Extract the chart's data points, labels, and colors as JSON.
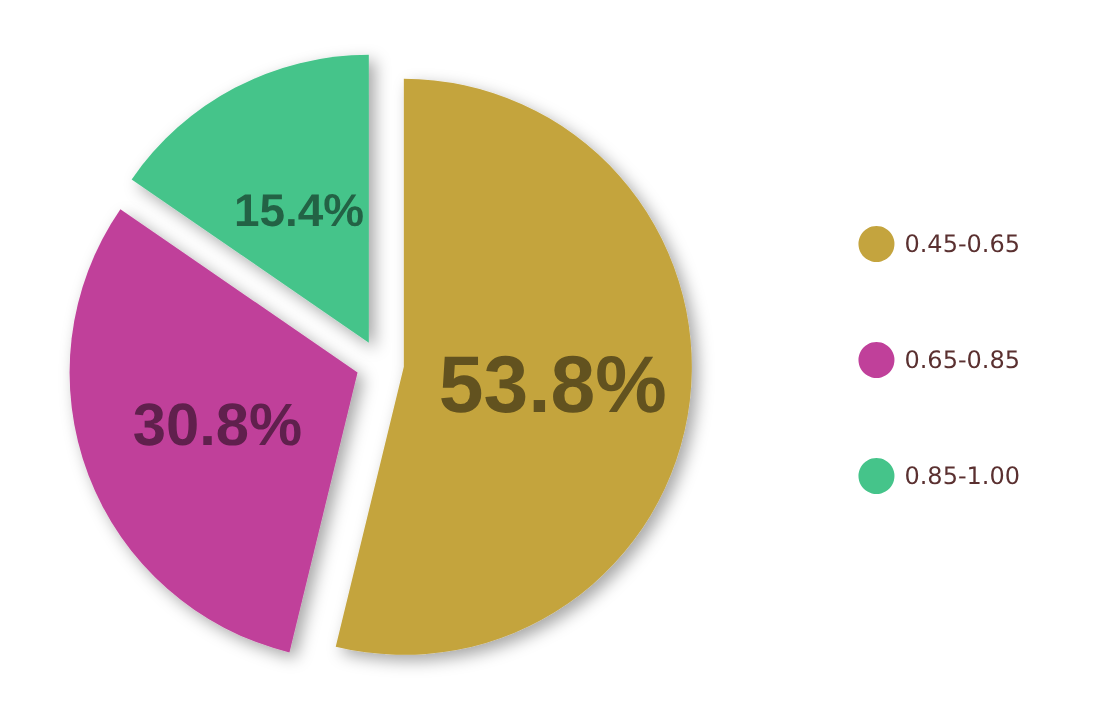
{
  "chart_data": {
    "type": "pie",
    "categories": [
      "0.45-0.65",
      "0.65-0.85",
      "0.85-1.00"
    ],
    "values": [
      53.8,
      30.8,
      15.4
    ],
    "colors": [
      "#c4a43e",
      "#c0409a",
      "#45c48a"
    ],
    "value_labels": [
      "53.8%",
      "30.8%",
      "15.4%"
    ],
    "legend": "right"
  }
}
